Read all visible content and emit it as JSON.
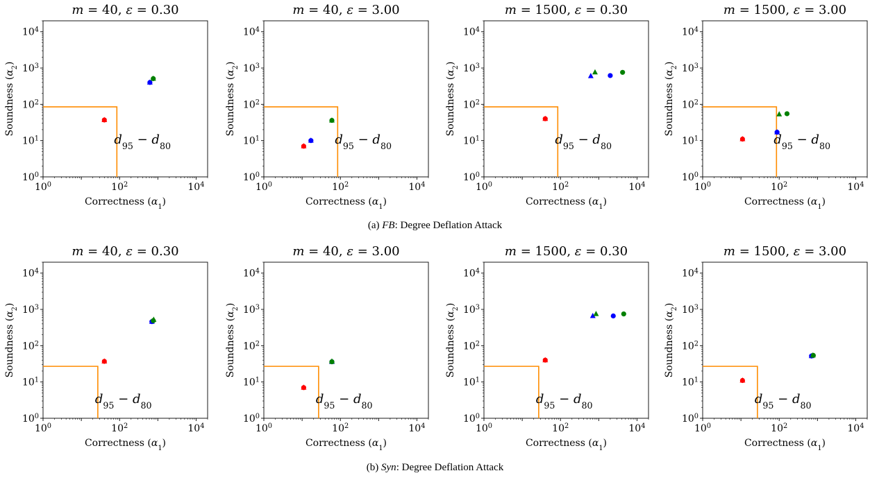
{
  "figure": {
    "rows": [
      {
        "caption_prefix": "(a) ",
        "caption_dataset": "FB",
        "caption_suffix": ": Degree Deflation Attack"
      },
      {
        "caption_prefix": "(b) ",
        "caption_dataset": "Syn",
        "caption_suffix": ": Degree Deflation Attack"
      }
    ]
  },
  "chart_data": [
    {
      "type": "scatter",
      "title": "m = 40, ε = 0.30",
      "xlabel": "Correctness (α1)",
      "ylabel": "Soundness (α2)",
      "xscale": "log",
      "yscale": "log",
      "xlim": [
        1,
        20000
      ],
      "ylim": [
        1,
        20000
      ],
      "x_ticks": [
        "10^0",
        "10^2",
        "10^4"
      ],
      "y_ticks": [
        "10^0",
        "10^1",
        "10^2",
        "10^3",
        "10^4"
      ],
      "threshold": 85,
      "threshold_label": "d95 − d80",
      "threshold_color": "#ff8c00",
      "points": [
        {
          "x": 40,
          "y": 37,
          "color": "#ff0000",
          "marker": "triangle"
        },
        {
          "x": 40,
          "y": 37,
          "color": "#ff0000",
          "marker": "circle"
        },
        {
          "x": 620,
          "y": 400,
          "color": "#0000ff",
          "marker": "triangle"
        },
        {
          "x": 620,
          "y": 400,
          "color": "#0000ff",
          "marker": "circle"
        },
        {
          "x": 760,
          "y": 510,
          "color": "#008000",
          "marker": "triangle"
        },
        {
          "x": 760,
          "y": 510,
          "color": "#008000",
          "marker": "circle"
        }
      ]
    },
    {
      "type": "scatter",
      "title": "m = 40, ε = 3.00",
      "xlabel": "Correctness (α1)",
      "ylabel": "Soundness (α2)",
      "xscale": "log",
      "yscale": "log",
      "xlim": [
        1,
        20000
      ],
      "ylim": [
        1,
        20000
      ],
      "x_ticks": [
        "10^0",
        "10^2",
        "10^4"
      ],
      "y_ticks": [
        "10^0",
        "10^1",
        "10^2",
        "10^3",
        "10^4"
      ],
      "threshold": 85,
      "threshold_label": "d95 − d80",
      "threshold_color": "#ff8c00",
      "points": [
        {
          "x": 11,
          "y": 7,
          "color": "#ff0000",
          "marker": "triangle"
        },
        {
          "x": 11,
          "y": 7,
          "color": "#ff0000",
          "marker": "circle"
        },
        {
          "x": 17,
          "y": 10,
          "color": "#0000ff",
          "marker": "triangle"
        },
        {
          "x": 17,
          "y": 10,
          "color": "#0000ff",
          "marker": "circle"
        },
        {
          "x": 60,
          "y": 36,
          "color": "#008000",
          "marker": "triangle"
        },
        {
          "x": 60,
          "y": 36,
          "color": "#008000",
          "marker": "circle"
        }
      ]
    },
    {
      "type": "scatter",
      "title": "m = 1500, ε = 0.30",
      "xlabel": "Correctness (α1)",
      "ylabel": "Soundness (α2)",
      "xscale": "log",
      "yscale": "log",
      "xlim": [
        1,
        20000
      ],
      "ylim": [
        1,
        20000
      ],
      "x_ticks": [
        "10^0",
        "10^2",
        "10^4"
      ],
      "y_ticks": [
        "10^0",
        "10^1",
        "10^2",
        "10^3",
        "10^4"
      ],
      "threshold": 85,
      "threshold_label": "d95 − d80",
      "threshold_color": "#ff8c00",
      "points": [
        {
          "x": 40,
          "y": 40,
          "color": "#ff0000",
          "marker": "triangle"
        },
        {
          "x": 40,
          "y": 40,
          "color": "#ff0000",
          "marker": "circle"
        },
        {
          "x": 620,
          "y": 600,
          "color": "#0000ff",
          "marker": "triangle"
        },
        {
          "x": 2000,
          "y": 620,
          "color": "#0000ff",
          "marker": "circle"
        },
        {
          "x": 800,
          "y": 760,
          "color": "#008000",
          "marker": "triangle"
        },
        {
          "x": 4200,
          "y": 760,
          "color": "#008000",
          "marker": "circle"
        }
      ]
    },
    {
      "type": "scatter",
      "title": "m = 1500, ε = 3.00",
      "xlabel": "Correctness (α1)",
      "ylabel": "Soundness (α2)",
      "xscale": "log",
      "yscale": "log",
      "xlim": [
        1,
        20000
      ],
      "ylim": [
        1,
        20000
      ],
      "x_ticks": [
        "10^0",
        "10^2",
        "10^4"
      ],
      "y_ticks": [
        "10^0",
        "10^1",
        "10^2",
        "10^3",
        "10^4"
      ],
      "threshold": 85,
      "threshold_label": "d95 − d80",
      "threshold_color": "#ff8c00",
      "points": [
        {
          "x": 11,
          "y": 11,
          "color": "#ff0000",
          "marker": "triangle"
        },
        {
          "x": 11,
          "y": 11,
          "color": "#ff0000",
          "marker": "circle"
        },
        {
          "x": 88,
          "y": 17,
          "color": "#0000ff",
          "marker": "triangle"
        },
        {
          "x": 88,
          "y": 17,
          "color": "#0000ff",
          "marker": "circle"
        },
        {
          "x": 100,
          "y": 53,
          "color": "#008000",
          "marker": "triangle"
        },
        {
          "x": 160,
          "y": 55,
          "color": "#008000",
          "marker": "circle"
        }
      ]
    },
    {
      "type": "scatter",
      "title": "m = 40, ε = 0.30",
      "xlabel": "Correctness (α1)",
      "ylabel": "Soundness (α2)",
      "xscale": "log",
      "yscale": "log",
      "xlim": [
        1,
        20000
      ],
      "ylim": [
        1,
        20000
      ],
      "x_ticks": [
        "10^0",
        "10^2",
        "10^4"
      ],
      "y_ticks": [
        "10^0",
        "10^1",
        "10^2",
        "10^3",
        "10^4"
      ],
      "threshold": 27,
      "threshold_label": "d95 − d80",
      "threshold_color": "#ff8c00",
      "points": [
        {
          "x": 40,
          "y": 37,
          "color": "#ff0000",
          "marker": "triangle"
        },
        {
          "x": 40,
          "y": 37,
          "color": "#ff0000",
          "marker": "circle"
        },
        {
          "x": 700,
          "y": 460,
          "color": "#0000ff",
          "marker": "triangle"
        },
        {
          "x": 700,
          "y": 460,
          "color": "#0000ff",
          "marker": "circle"
        },
        {
          "x": 780,
          "y": 520,
          "color": "#008000",
          "marker": "triangle"
        },
        {
          "x": 760,
          "y": 490,
          "color": "#008000",
          "marker": "circle"
        }
      ]
    },
    {
      "type": "scatter",
      "title": "m = 40, ε = 3.00",
      "xlabel": "Correctness (α1)",
      "ylabel": "Soundness (α2)",
      "xscale": "log",
      "yscale": "log",
      "xlim": [
        1,
        20000
      ],
      "ylim": [
        1,
        20000
      ],
      "x_ticks": [
        "10^0",
        "10^2",
        "10^4"
      ],
      "y_ticks": [
        "10^0",
        "10^1",
        "10^2",
        "10^3",
        "10^4"
      ],
      "threshold": 27,
      "threshold_label": "d95 − d80",
      "threshold_color": "#ff8c00",
      "points": [
        {
          "x": 11,
          "y": 7,
          "color": "#ff0000",
          "marker": "triangle"
        },
        {
          "x": 11,
          "y": 7,
          "color": "#ff0000",
          "marker": "circle"
        },
        {
          "x": 60,
          "y": 36,
          "color": "#0000ff",
          "marker": "triangle"
        },
        {
          "x": 60,
          "y": 36,
          "color": "#0000ff",
          "marker": "circle"
        },
        {
          "x": 60,
          "y": 37,
          "color": "#008000",
          "marker": "triangle"
        },
        {
          "x": 60,
          "y": 36,
          "color": "#008000",
          "marker": "circle"
        }
      ]
    },
    {
      "type": "scatter",
      "title": "m = 1500, ε = 0.30",
      "xlabel": "Correctness (α1)",
      "ylabel": "Soundness (α2)",
      "xscale": "log",
      "yscale": "log",
      "xlim": [
        1,
        20000
      ],
      "ylim": [
        1,
        20000
      ],
      "x_ticks": [
        "10^0",
        "10^2",
        "10^4"
      ],
      "y_ticks": [
        "10^0",
        "10^1",
        "10^2",
        "10^3",
        "10^4"
      ],
      "threshold": 27,
      "threshold_label": "d95 − d80",
      "threshold_color": "#ff8c00",
      "points": [
        {
          "x": 40,
          "y": 40,
          "color": "#ff0000",
          "marker": "triangle"
        },
        {
          "x": 40,
          "y": 40,
          "color": "#ff0000",
          "marker": "circle"
        },
        {
          "x": 700,
          "y": 660,
          "color": "#0000ff",
          "marker": "triangle"
        },
        {
          "x": 2400,
          "y": 660,
          "color": "#0000ff",
          "marker": "circle"
        },
        {
          "x": 850,
          "y": 750,
          "color": "#008000",
          "marker": "triangle"
        },
        {
          "x": 4500,
          "y": 750,
          "color": "#008000",
          "marker": "circle"
        }
      ]
    },
    {
      "type": "scatter",
      "title": "m = 1500, ε = 3.00",
      "xlabel": "Correctness (α1)",
      "ylabel": "Soundness (α2)",
      "xscale": "log",
      "yscale": "log",
      "xlim": [
        1,
        20000
      ],
      "ylim": [
        1,
        20000
      ],
      "x_ticks": [
        "10^0",
        "10^2",
        "10^4"
      ],
      "y_ticks": [
        "10^0",
        "10^1",
        "10^2",
        "10^3",
        "10^4"
      ],
      "threshold": 27,
      "threshold_label": "d95 − d80",
      "threshold_color": "#ff8c00",
      "points": [
        {
          "x": 11,
          "y": 11,
          "color": "#ff0000",
          "marker": "triangle"
        },
        {
          "x": 11,
          "y": 11,
          "color": "#ff0000",
          "marker": "circle"
        },
        {
          "x": 700,
          "y": 52,
          "color": "#0000ff",
          "marker": "triangle"
        },
        {
          "x": 700,
          "y": 52,
          "color": "#0000ff",
          "marker": "circle"
        },
        {
          "x": 760,
          "y": 54,
          "color": "#008000",
          "marker": "triangle"
        },
        {
          "x": 780,
          "y": 54,
          "color": "#008000",
          "marker": "circle"
        }
      ]
    }
  ]
}
